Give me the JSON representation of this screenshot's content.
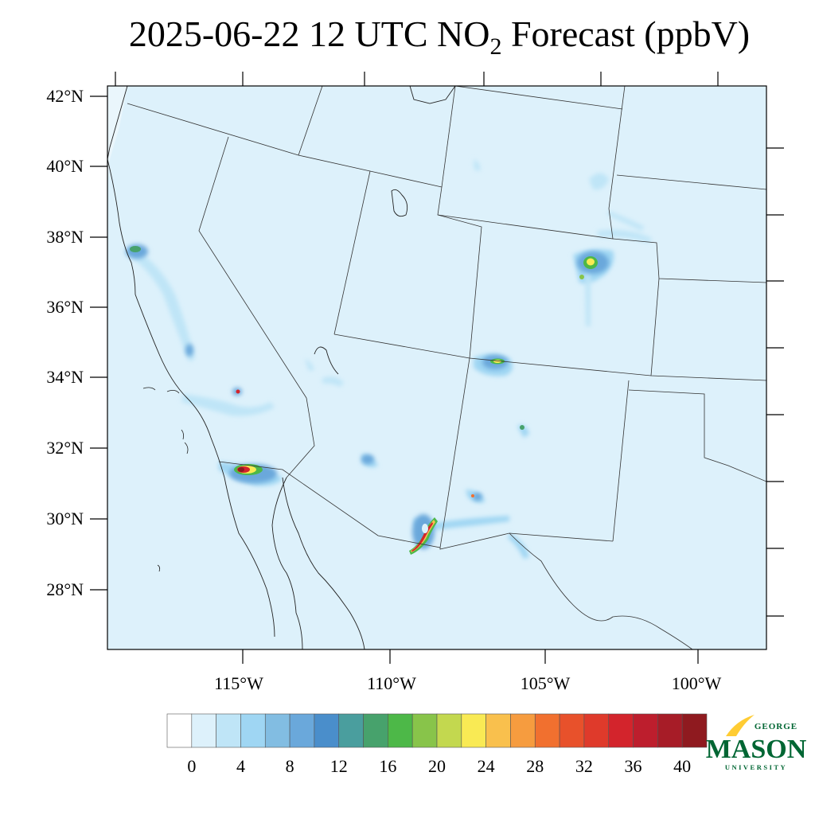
{
  "title": {
    "prefix": "2025-06-22 12 UTC NO",
    "subscript": "2",
    "suffix": " Forecast (ppbV)"
  },
  "map": {
    "lat_labels": [
      "42°N",
      "40°N",
      "38°N",
      "36°N",
      "34°N",
      "32°N",
      "30°N",
      "28°N"
    ],
    "lon_labels": [
      "115°W",
      "110°W",
      "105°W",
      "100°W"
    ],
    "background_color": "#ddf1fb",
    "hotspots": [
      {
        "name": "los-angeles",
        "level": 40
      },
      {
        "name": "phoenix",
        "level": 40
      },
      {
        "name": "tucson-el-paso-corridor",
        "level": 30
      },
      {
        "name": "denver",
        "level": 24
      },
      {
        "name": "albuquerque",
        "level": 24
      },
      {
        "name": "san-francisco",
        "level": 16
      }
    ]
  },
  "colorbar": {
    "tick_labels": [
      "0",
      "4",
      "8",
      "12",
      "16",
      "20",
      "24",
      "28",
      "32",
      "36",
      "40"
    ],
    "colors": [
      "#ffffff",
      "#ddf1fb",
      "#bfe5f7",
      "#9fd6f3",
      "#82bde2",
      "#6aa8db",
      "#4a8ecb",
      "#4a9e9e",
      "#47a26c",
      "#4db848",
      "#88c44a",
      "#c3d84f",
      "#f9ea54",
      "#f9c04d",
      "#f69c3f",
      "#f1702f",
      "#e8512b",
      "#df3a2b",
      "#d3242c",
      "#bd1e2d",
      "#a71c27",
      "#8f1a1f"
    ]
  },
  "logo": {
    "top": "GEORGE",
    "main": "MASON",
    "bottom": "UNIVERSITY",
    "green": "#006633",
    "gold": "#ffcc33"
  }
}
